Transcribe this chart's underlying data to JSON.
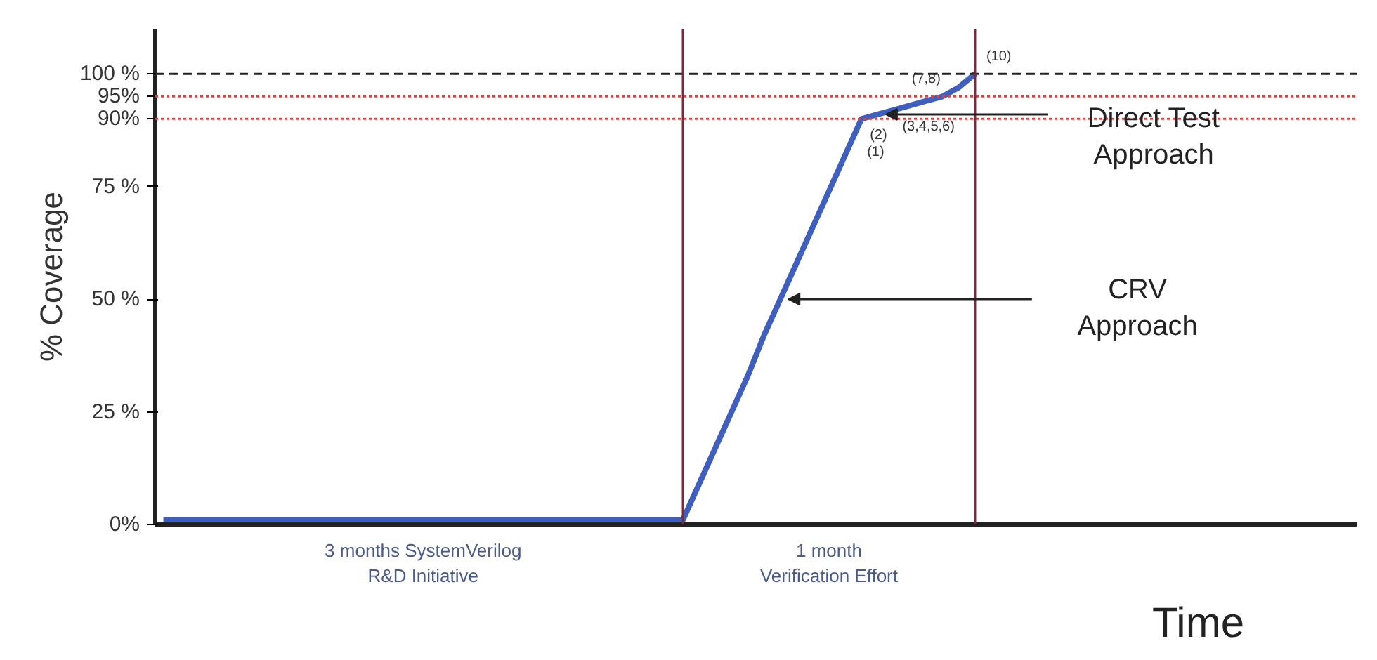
{
  "chart_data": {
    "type": "line",
    "xlabel": "Time",
    "ylabel": "% Coverage",
    "categories": [
      null,
      null,
      null,
      null,
      null,
      null,
      null,
      null,
      null,
      null,
      null,
      null,
      null,
      null,
      null,
      null,
      "3 months SystemVerilog\nR&D Initiative",
      null,
      null,
      null,
      null,
      null,
      null,
      null,
      null,
      null,
      null,
      null,
      null,
      null,
      null,
      null,
      null,
      null,
      null,
      null,
      null,
      null,
      null,
      null,
      null,
      "1 month\nVerification Effort",
      null,
      null,
      null,
      null,
      null,
      null,
      null,
      null,
      null
    ],
    "series": [
      {
        "color": "#3f5fbf",
        "values": [
          1,
          1,
          1,
          1,
          1,
          1,
          1,
          1,
          1,
          1,
          1,
          1,
          1,
          1,
          1,
          1,
          1,
          1,
          1,
          1,
          1,
          1,
          1,
          1,
          1,
          1,
          1,
          1,
          1,
          1,
          1,
          1,
          1,
          9,
          17,
          25,
          33,
          42,
          50,
          58,
          66,
          74,
          82,
          90,
          91,
          92,
          93,
          94,
          95,
          97,
          100
        ]
      }
    ],
    "ylim": [
      0,
      110
    ],
    "yticks": [
      {
        "value": 0,
        "label": "0%"
      },
      {
        "value": 25,
        "label": "25 %"
      },
      {
        "value": 50,
        "label": "50 %"
      },
      {
        "value": 75,
        "label": "75 %"
      },
      {
        "value": 90,
        "label": "90%"
      },
      {
        "value": 95,
        "label": "95%"
      },
      {
        "value": 100,
        "label": "100 %"
      }
    ],
    "ref_lines": [
      {
        "axis": "y",
        "value": 100,
        "color": "#222222",
        "line_style": "dashed"
      },
      {
        "axis": "y",
        "value": 95,
        "color": "#e04040",
        "line_style": "dotted"
      },
      {
        "axis": "y",
        "value": 90,
        "color": "#e04040",
        "line_style": "dotted"
      }
    ],
    "annotations": [
      {
        "text": "(1)",
        "y": 90
      },
      {
        "text": "(2)",
        "y": 90
      },
      {
        "text": "(3,4,5,6)",
        "y": 92
      },
      {
        "text": "(7,8)",
        "y": 95
      },
      {
        "text": "(10)",
        "y": 100
      },
      "Direct Test\nApproach",
      "CRV\nApproach"
    ]
  }
}
